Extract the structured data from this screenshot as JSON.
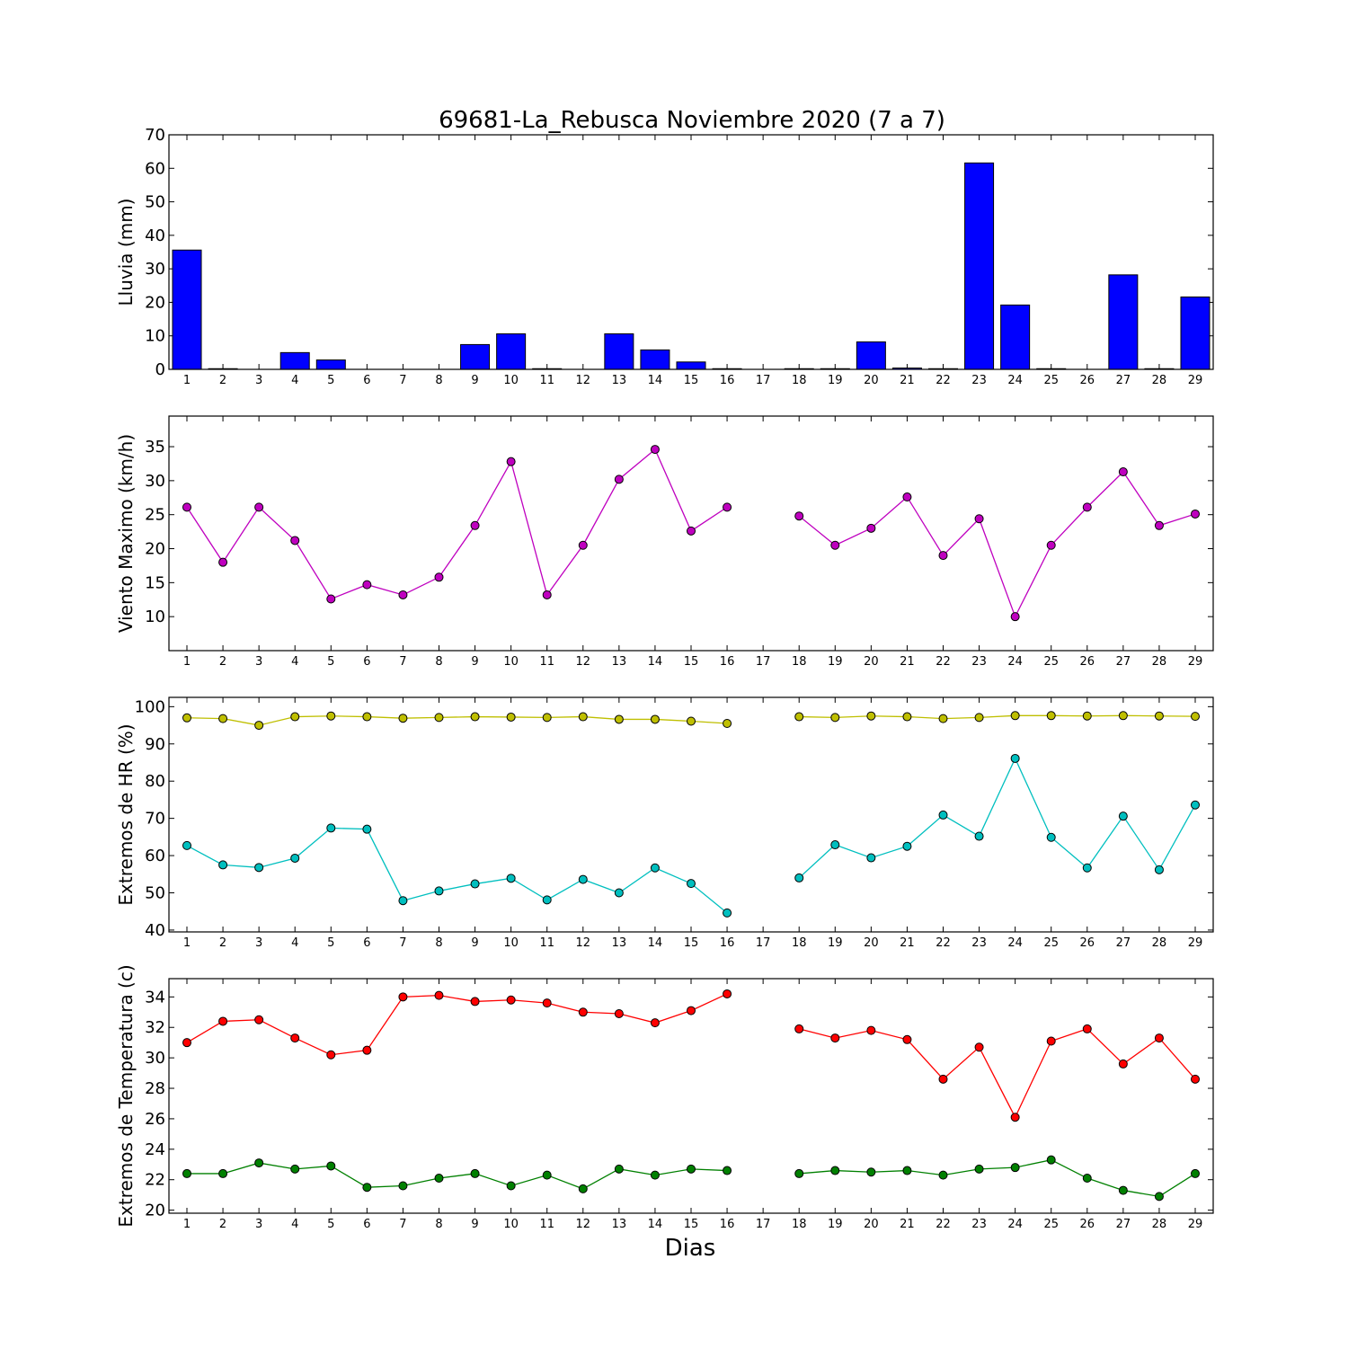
{
  "title": "69681-La_Rebusca Noviembre 2020  (7 a 7)",
  "xlabel": "Dias",
  "chart_data": [
    {
      "type": "bar",
      "ylabel": "Lluvia (mm)",
      "ylim": [
        0,
        70
      ],
      "yticks": [
        0,
        10,
        20,
        30,
        40,
        50,
        60,
        70
      ],
      "categories": [
        "1",
        "2",
        "3",
        "4",
        "5",
        "6",
        "7",
        "8",
        "9",
        "10",
        "11",
        "12",
        "13",
        "14",
        "15",
        "16",
        "17",
        "18",
        "19",
        "20",
        "21",
        "22",
        "23",
        "24",
        "25",
        "26",
        "27",
        "28",
        "29"
      ],
      "values": [
        35.6,
        0.2,
        0,
        5.0,
        2.8,
        0,
        0,
        0,
        7.4,
        10.6,
        0.2,
        0,
        10.6,
        5.8,
        2.2,
        0.2,
        null,
        0.2,
        0.2,
        8.2,
        0.4,
        0.2,
        61.6,
        19.2,
        0.2,
        0,
        28.2,
        0.2,
        21.6
      ],
      "color": "#0000ff",
      "grid": false
    },
    {
      "type": "line",
      "ylabel": "Viento Maximo (km/h)",
      "ylim": [
        5,
        39.5
      ],
      "yticks": [
        10,
        15,
        20,
        25,
        30,
        35
      ],
      "categories": [
        "1",
        "2",
        "3",
        "4",
        "5",
        "6",
        "7",
        "8",
        "9",
        "10",
        "11",
        "12",
        "13",
        "14",
        "15",
        "16",
        "17",
        "18",
        "19",
        "20",
        "21",
        "22",
        "23",
        "24",
        "25",
        "26",
        "27",
        "28",
        "29"
      ],
      "series": [
        {
          "color": "#bf00bf",
          "values": [
            26.1,
            18.0,
            26.1,
            21.2,
            12.6,
            14.7,
            13.2,
            15.8,
            23.4,
            32.8,
            13.2,
            20.5,
            30.2,
            34.6,
            22.6,
            26.1,
            null,
            24.8,
            20.5,
            23.0,
            27.6,
            19.0,
            24.4,
            10.0,
            20.5,
            26.1,
            31.3,
            23.4,
            25.1
          ]
        }
      ],
      "grid": false
    },
    {
      "type": "line",
      "ylabel": "Extremos de HR (%)",
      "ylim": [
        39.5,
        102.5
      ],
      "yticks": [
        40,
        50,
        60,
        70,
        80,
        90,
        100
      ],
      "categories": [
        "1",
        "2",
        "3",
        "4",
        "5",
        "6",
        "7",
        "8",
        "9",
        "10",
        "11",
        "12",
        "13",
        "14",
        "15",
        "16",
        "17",
        "18",
        "19",
        "20",
        "21",
        "22",
        "23",
        "24",
        "25",
        "26",
        "27",
        "28",
        "29"
      ],
      "series": [
        {
          "color": "#bfbf00",
          "values": [
            97,
            96.8,
            95,
            97.3,
            97.5,
            97.3,
            96.9,
            97.1,
            97.3,
            97.2,
            97.1,
            97.3,
            96.6,
            96.6,
            96.1,
            95.5,
            null,
            97.3,
            97.1,
            97.5,
            97.3,
            96.8,
            97.1,
            97.6,
            97.6,
            97.5,
            97.6,
            97.5,
            97.4
          ]
        },
        {
          "color": "#00bfbf",
          "values": [
            62.7,
            57.5,
            56.8,
            59.3,
            67.4,
            67.1,
            47.9,
            50.5,
            52.4,
            53.9,
            48.1,
            53.6,
            50.0,
            56.7,
            52.5,
            44.6,
            null,
            54.0,
            62.9,
            59.4,
            62.5,
            70.9,
            65.2,
            86.1,
            64.9,
            56.7,
            70.6,
            56.2,
            73.6
          ]
        }
      ],
      "grid": false
    },
    {
      "type": "line",
      "ylabel": "Extremos de Temperatura (c)",
      "ylim": [
        19.8,
        35.2
      ],
      "yticks": [
        20,
        22,
        24,
        26,
        28,
        30,
        32,
        34
      ],
      "categories": [
        "1",
        "2",
        "3",
        "4",
        "5",
        "6",
        "7",
        "8",
        "9",
        "10",
        "11",
        "12",
        "13",
        "14",
        "15",
        "16",
        "17",
        "18",
        "19",
        "20",
        "21",
        "22",
        "23",
        "24",
        "25",
        "26",
        "27",
        "28",
        "29"
      ],
      "series": [
        {
          "color": "#ff0000",
          "values": [
            31.0,
            32.4,
            32.5,
            31.3,
            30.2,
            30.5,
            34.0,
            34.1,
            33.7,
            33.8,
            33.6,
            33.0,
            32.9,
            32.3,
            33.1,
            34.2,
            null,
            31.9,
            31.3,
            31.8,
            31.2,
            28.6,
            30.7,
            26.1,
            31.1,
            31.9,
            29.6,
            31.3,
            28.6
          ]
        },
        {
          "color": "#008000",
          "values": [
            22.4,
            22.4,
            23.1,
            22.7,
            22.9,
            21.5,
            21.6,
            22.1,
            22.4,
            21.6,
            22.3,
            21.4,
            22.7,
            22.3,
            22.7,
            22.6,
            null,
            22.4,
            22.6,
            22.5,
            22.6,
            22.3,
            22.7,
            22.8,
            23.3,
            22.1,
            21.3,
            20.9,
            22.4
          ]
        }
      ],
      "grid": false
    }
  ]
}
